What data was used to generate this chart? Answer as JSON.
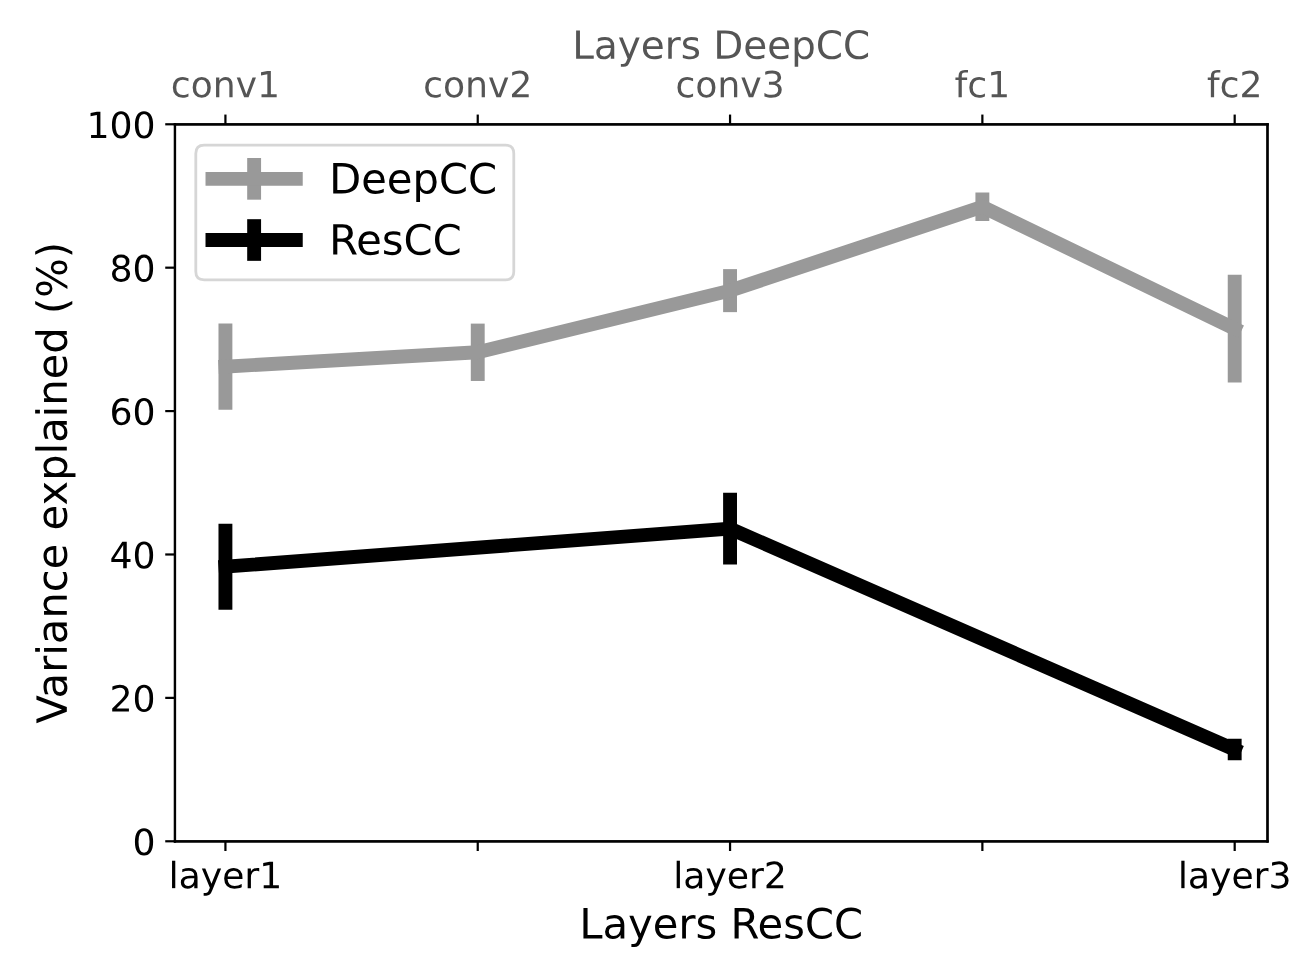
{
  "chart_data": {
    "type": "line",
    "xlabel": "Layers ResCC",
    "x2label": "Layers DeepCC",
    "ylabel": "Variance explained (%)",
    "categories": [
      "layer1",
      null,
      "layer2",
      null,
      "layer3"
    ],
    "annotations": [
      "conv1",
      "conv2",
      "conv3",
      "fc1",
      "fc2"
    ],
    "ylim": [
      0,
      100
    ],
    "yticks": [
      0,
      20,
      40,
      60,
      80,
      100
    ],
    "series": [
      {
        "name": "DeepCC",
        "color": "#999999",
        "values": [
          66.2,
          68.2,
          76.8,
          88.5,
          71.5
        ],
        "errors": [
          6,
          4,
          3,
          2,
          7.5
        ]
      },
      {
        "name": "ResCC",
        "color": "#000000",
        "values": [
          38.3,
          null,
          43.6,
          null,
          12.8
        ],
        "errors": [
          6,
          null,
          5,
          null,
          1.5
        ]
      }
    ],
    "grid": false,
    "legend": "top left",
    "marker": "none",
    "line_style": "solid"
  }
}
